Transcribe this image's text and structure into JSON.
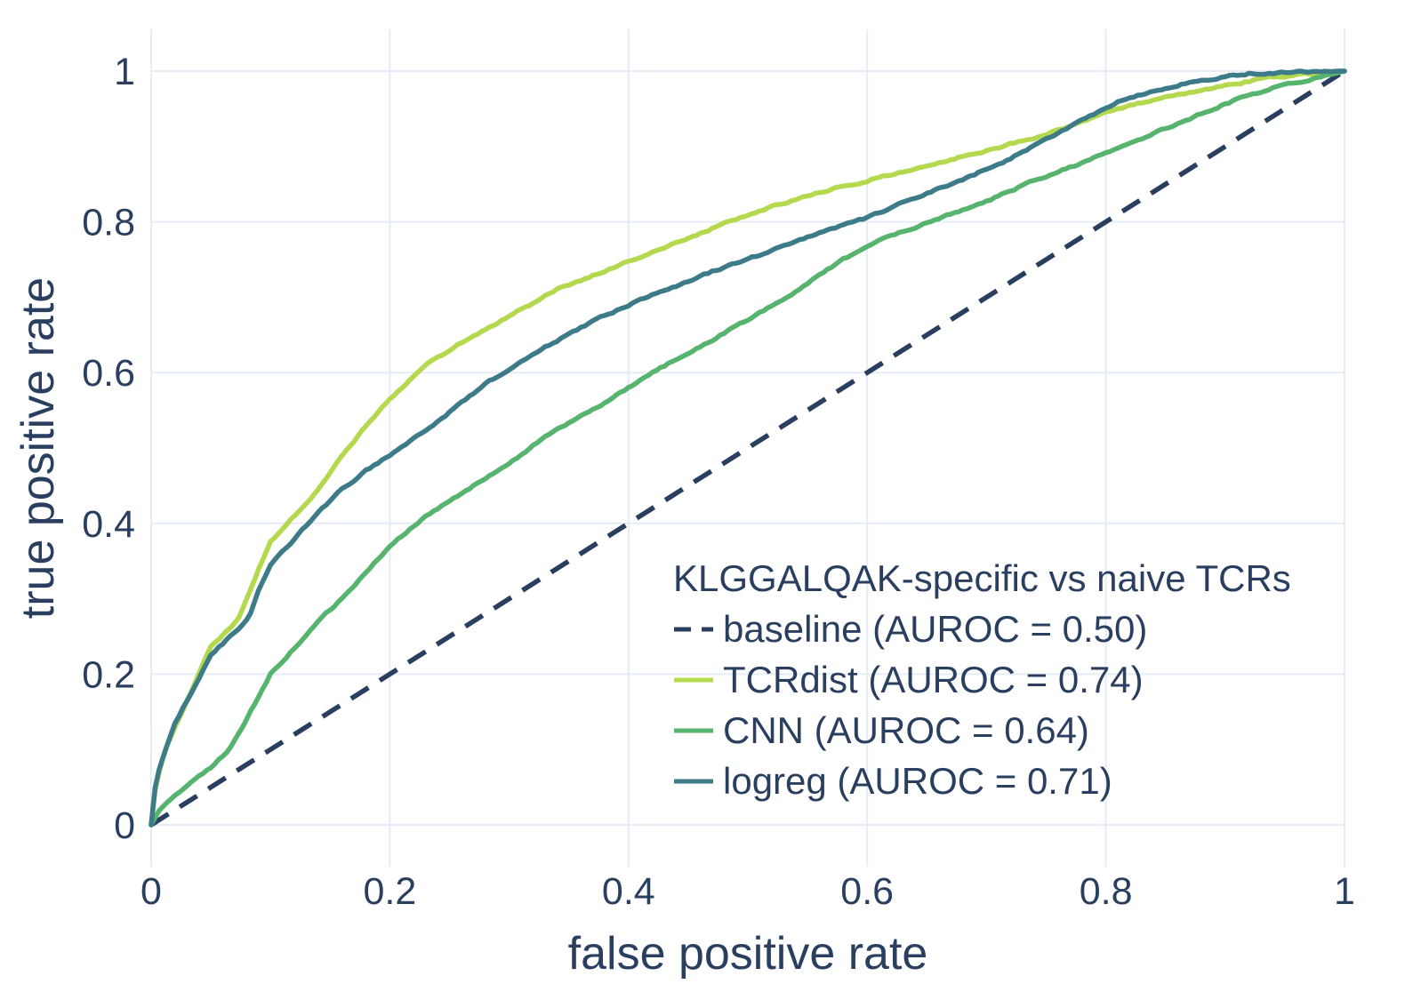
{
  "chart_data": {
    "type": "line",
    "subtype": "roc-curve",
    "xlabel": "false positive rate",
    "ylabel": "true positive rate",
    "x_range": [
      0,
      1
    ],
    "y_range": [
      -0.056,
      1.056
    ],
    "grid": true,
    "background": "#ffffff",
    "grid_color": "#e5ecf6",
    "text_color": "#2a3f5f",
    "x_ticks": {
      "values": [
        0,
        0.2,
        0.4,
        0.6,
        0.8,
        1
      ],
      "labels": [
        "0",
        "0.2",
        "0.4",
        "0.6",
        "0.8",
        "1"
      ]
    },
    "y_ticks": {
      "values": [
        0,
        0.2,
        0.4,
        0.6,
        0.8,
        1
      ],
      "labels": [
        "0",
        "0.2",
        "0.4",
        "0.6",
        "0.8",
        "1"
      ]
    },
    "legend": {
      "title": "KLGGALQAK-specific vs naive TCRs",
      "position": "inside-bottom-right"
    },
    "series": [
      {
        "name": "baseline",
        "legend_label": "baseline (AUROC = 0.50)",
        "auroc": 0.5,
        "color": "#2a3f5f",
        "dash": "dashed",
        "points": [
          [
            0,
            0
          ],
          [
            1,
            1
          ]
        ]
      },
      {
        "name": "TCRdist",
        "legend_label": "TCRdist (AUROC = 0.74)",
        "auroc": 0.74,
        "color": "#b4d94e",
        "dash": "solid",
        "points": [
          [
            0,
            0
          ],
          [
            0.004,
            0.055
          ],
          [
            0.012,
            0.1
          ],
          [
            0.02,
            0.13
          ],
          [
            0.03,
            0.165
          ],
          [
            0.04,
            0.2
          ],
          [
            0.05,
            0.235
          ],
          [
            0.06,
            0.252
          ],
          [
            0.072,
            0.27
          ],
          [
            0.08,
            0.3
          ],
          [
            0.09,
            0.34
          ],
          [
            0.1,
            0.375
          ],
          [
            0.12,
            0.41
          ],
          [
            0.14,
            0.445
          ],
          [
            0.16,
            0.49
          ],
          [
            0.18,
            0.53
          ],
          [
            0.2,
            0.565
          ],
          [
            0.23,
            0.61
          ],
          [
            0.26,
            0.64
          ],
          [
            0.3,
            0.675
          ],
          [
            0.34,
            0.71
          ],
          [
            0.38,
            0.735
          ],
          [
            0.42,
            0.76
          ],
          [
            0.46,
            0.785
          ],
          [
            0.5,
            0.81
          ],
          [
            0.55,
            0.835
          ],
          [
            0.6,
            0.855
          ],
          [
            0.65,
            0.875
          ],
          [
            0.7,
            0.895
          ],
          [
            0.75,
            0.916
          ],
          [
            0.8,
            0.945
          ],
          [
            0.85,
            0.966
          ],
          [
            0.9,
            0.981
          ],
          [
            0.94,
            0.992
          ],
          [
            1,
            1
          ]
        ]
      },
      {
        "name": "CNN",
        "legend_label": "CNN (AUROC = 0.64)",
        "auroc": 0.64,
        "color": "#57b46f",
        "dash": "solid",
        "points": [
          [
            0,
            0
          ],
          [
            0.006,
            0.018
          ],
          [
            0.02,
            0.04
          ],
          [
            0.035,
            0.06
          ],
          [
            0.05,
            0.077
          ],
          [
            0.065,
            0.1
          ],
          [
            0.08,
            0.14
          ],
          [
            0.1,
            0.2
          ],
          [
            0.12,
            0.235
          ],
          [
            0.14,
            0.27
          ],
          [
            0.16,
            0.3
          ],
          [
            0.18,
            0.335
          ],
          [
            0.2,
            0.37
          ],
          [
            0.23,
            0.41
          ],
          [
            0.26,
            0.44
          ],
          [
            0.3,
            0.48
          ],
          [
            0.34,
            0.525
          ],
          [
            0.38,
            0.56
          ],
          [
            0.42,
            0.6
          ],
          [
            0.46,
            0.635
          ],
          [
            0.5,
            0.67
          ],
          [
            0.54,
            0.708
          ],
          [
            0.58,
            0.75
          ],
          [
            0.62,
            0.782
          ],
          [
            0.66,
            0.805
          ],
          [
            0.7,
            0.827
          ],
          [
            0.74,
            0.855
          ],
          [
            0.78,
            0.878
          ],
          [
            0.82,
            0.905
          ],
          [
            0.86,
            0.93
          ],
          [
            0.9,
            0.957
          ],
          [
            0.94,
            0.978
          ],
          [
            1,
            1
          ]
        ]
      },
      {
        "name": "logreg",
        "legend_label": "logreg (AUROC = 0.71)",
        "auroc": 0.71,
        "color": "#3d7b89",
        "dash": "solid",
        "points": [
          [
            0,
            0
          ],
          [
            0.004,
            0.06
          ],
          [
            0.012,
            0.1
          ],
          [
            0.02,
            0.135
          ],
          [
            0.03,
            0.165
          ],
          [
            0.04,
            0.195
          ],
          [
            0.05,
            0.225
          ],
          [
            0.065,
            0.248
          ],
          [
            0.082,
            0.275
          ],
          [
            0.09,
            0.31
          ],
          [
            0.1,
            0.345
          ],
          [
            0.12,
            0.38
          ],
          [
            0.14,
            0.415
          ],
          [
            0.16,
            0.445
          ],
          [
            0.18,
            0.47
          ],
          [
            0.2,
            0.49
          ],
          [
            0.24,
            0.535
          ],
          [
            0.28,
            0.585
          ],
          [
            0.32,
            0.625
          ],
          [
            0.36,
            0.66
          ],
          [
            0.4,
            0.69
          ],
          [
            0.44,
            0.715
          ],
          [
            0.48,
            0.74
          ],
          [
            0.52,
            0.762
          ],
          [
            0.56,
            0.785
          ],
          [
            0.6,
            0.805
          ],
          [
            0.64,
            0.832
          ],
          [
            0.68,
            0.856
          ],
          [
            0.72,
            0.884
          ],
          [
            0.75,
            0.91
          ],
          [
            0.78,
            0.935
          ],
          [
            0.81,
            0.96
          ],
          [
            0.85,
            0.978
          ],
          [
            0.88,
            0.988
          ],
          [
            0.92,
            0.997
          ],
          [
            1,
            1
          ]
        ]
      }
    ]
  }
}
